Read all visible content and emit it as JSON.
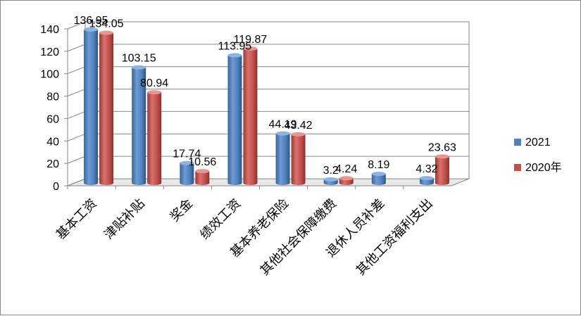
{
  "chart_data": {
    "type": "bar",
    "title": "",
    "xlabel": "",
    "ylabel": "",
    "ylim": [
      0,
      140
    ],
    "yticks": [
      0,
      20,
      40,
      60,
      80,
      100,
      120,
      140
    ],
    "grid": true,
    "legend_position": "right",
    "categories": [
      "基本工资",
      "津贴补贴",
      "奖金",
      "绩效工资",
      "基本养老保险",
      "其他社会保障缴费",
      "退休人员补差",
      "其他工资福利支出"
    ],
    "series": [
      {
        "name": "2021",
        "color": "#4F81BD",
        "values": [
          136.95,
          103.15,
          17.74,
          113.95,
          44.19,
          3.2,
          8.19,
          4.32
        ],
        "labels": [
          "136.95",
          "103.15",
          "17.74",
          "113.95",
          "44.19",
          "3.2",
          "8.19",
          "4.32"
        ]
      },
      {
        "name": "2020年",
        "color": "#C0504D",
        "values": [
          134.05,
          80.94,
          10.56,
          119.87,
          43.42,
          4.24,
          null,
          23.63
        ],
        "labels": [
          "134.05",
          "80.94",
          "10.56",
          "119.87",
          "43.42",
          "4.24",
          "",
          "23.63"
        ]
      }
    ]
  }
}
